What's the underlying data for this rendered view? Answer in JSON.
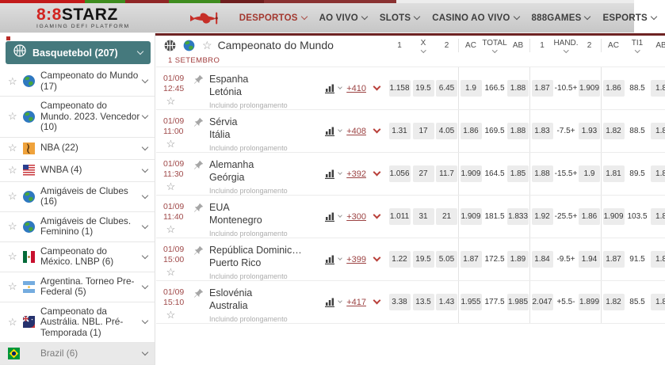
{
  "top_strip_segments": [
    {
      "width": 107,
      "color": "#c21a1a"
    },
    {
      "width": 51,
      "color": "#3e8c1f"
    },
    {
      "width": 55,
      "color": "#8f2626"
    },
    {
      "width": 65,
      "color": "#3e8c1f"
    },
    {
      "width": 55,
      "color": "#6e1e1e"
    },
    {
      "width": 167,
      "color": "#8a3232"
    }
  ],
  "top_nav": {
    "logo": {
      "red": "8:8",
      "name": "STARZ",
      "tagline": "iGaming DeFi Platform"
    },
    "items": [
      {
        "label": "DESPORTOS",
        "active": true
      },
      {
        "label": "AO VIVO",
        "active": false
      },
      {
        "label": "SLOTS",
        "active": false
      },
      {
        "label": "CASINO AO VIVO",
        "active": false
      },
      {
        "label": "888GAMES",
        "active": false
      },
      {
        "label": "ESPORTS",
        "active": false
      }
    ]
  },
  "sidebar": {
    "header": {
      "label": "Basquetebol (207)",
      "icon": "basketball-icon"
    },
    "items": [
      {
        "label": "Campeonato do Mundo (17)",
        "icon": "globe-icon"
      },
      {
        "label": "Campeonato do Mundo. 2023. Vencedor (10)",
        "icon": "globe-icon"
      },
      {
        "label": "NBA (22)",
        "icon": "nba-icon"
      },
      {
        "label": "WNBA (4)",
        "icon": "usa-flag-icon"
      },
      {
        "label": "Amigáveis de Clubes (16)",
        "icon": "globe-icon"
      },
      {
        "label": "Amigáveis de Clubes. Feminino (1)",
        "icon": "globe-icon"
      },
      {
        "label": "Campeonato do México. LNBP (6)",
        "icon": "mexico-flag-icon"
      },
      {
        "label": "Argentina. Torneo Pre-Federal (5)",
        "icon": "argentina-flag-icon"
      },
      {
        "label": "Campeonato da Austrália. NBL. Pré-Temporada (1)",
        "icon": "australia-flag-icon"
      },
      {
        "label": "Brazil (6)",
        "icon": "brazil-flag-icon",
        "muted": true
      }
    ]
  },
  "content": {
    "title": "Campeonato do Mundo",
    "date_header": "1 SETEMBRO",
    "subtext": "Incluindo prolongamento",
    "columns": [
      {
        "label": "1",
        "dropdown": false
      },
      {
        "label": "X",
        "dropdown": true
      },
      {
        "label": "2",
        "dropdown": false
      },
      {
        "label": "AC",
        "dropdown": false
      },
      {
        "label": "TOTAL",
        "dropdown": true
      },
      {
        "label": "AB",
        "dropdown": false
      },
      {
        "label": "1",
        "dropdown": false
      },
      {
        "label": "HAND.",
        "dropdown": true
      },
      {
        "label": "2",
        "dropdown": false
      },
      {
        "label": "AC",
        "dropdown": false
      },
      {
        "label": "TI1",
        "dropdown": true
      },
      {
        "label": "AB",
        "dropdown": false
      }
    ],
    "param_column_indexes": [
      4,
      7,
      10
    ],
    "separator_after_indexes": [
      2,
      5,
      8
    ],
    "rows": [
      {
        "date": "01/09",
        "time": "12:45",
        "team1": "Espanha",
        "team2": "Letónia",
        "more": "+410",
        "odds": [
          "1.158",
          "19.5",
          "6.45",
          "1.9",
          "166.5",
          "1.88",
          "1.87",
          "-10.5+",
          "1.909",
          "1.86",
          "88.5",
          "1.8"
        ]
      },
      {
        "date": "01/09",
        "time": "11:00",
        "team1": "Sérvia",
        "team2": "Itália",
        "more": "+408",
        "odds": [
          "1.31",
          "17",
          "4.05",
          "1.86",
          "169.5",
          "1.88",
          "1.83",
          "-7.5+",
          "1.93",
          "1.82",
          "88.5",
          "1.8"
        ]
      },
      {
        "date": "01/09",
        "time": "11:30",
        "team1": "Alemanha",
        "team2": "Geórgia",
        "more": "+392",
        "odds": [
          "1.056",
          "27",
          "11.7",
          "1.909",
          "164.5",
          "1.85",
          "1.88",
          "-15.5+",
          "1.9",
          "1.81",
          "89.5",
          "1.8"
        ]
      },
      {
        "date": "01/09",
        "time": "11:40",
        "team1": "EUA",
        "team2": "Montenegro",
        "more": "+300",
        "odds": [
          "1.011",
          "31",
          "21",
          "1.909",
          "181.5",
          "1.833",
          "1.92",
          "-25.5+",
          "1.86",
          "1.909",
          "103.5",
          "1.8"
        ]
      },
      {
        "date": "01/09",
        "time": "15:00",
        "team1": "República Dominic…",
        "team2": "Puerto Rico",
        "more": "+399",
        "odds": [
          "1.22",
          "19.5",
          "5.05",
          "1.87",
          "172.5",
          "1.89",
          "1.84",
          "-9.5+",
          "1.94",
          "1.87",
          "91.5",
          "1.8"
        ]
      },
      {
        "date": "01/09",
        "time": "15:10",
        "team1": "Eslovénia",
        "team2": "Australia",
        "more": "+417",
        "odds": [
          "3.38",
          "13.5",
          "1.43",
          "1.955",
          "177.5",
          "1.985",
          "2.047",
          "+5.5-",
          "1.899",
          "1.82",
          "85.5",
          "1.8"
        ]
      }
    ]
  },
  "colors": {
    "accent_maroon": "#9c4343",
    "nav_active": "#a3382f",
    "sidebar_teal": "#45797d",
    "chip_bg": "#ececec",
    "brand_red": "#d22421",
    "top_line": "#6e2323"
  }
}
